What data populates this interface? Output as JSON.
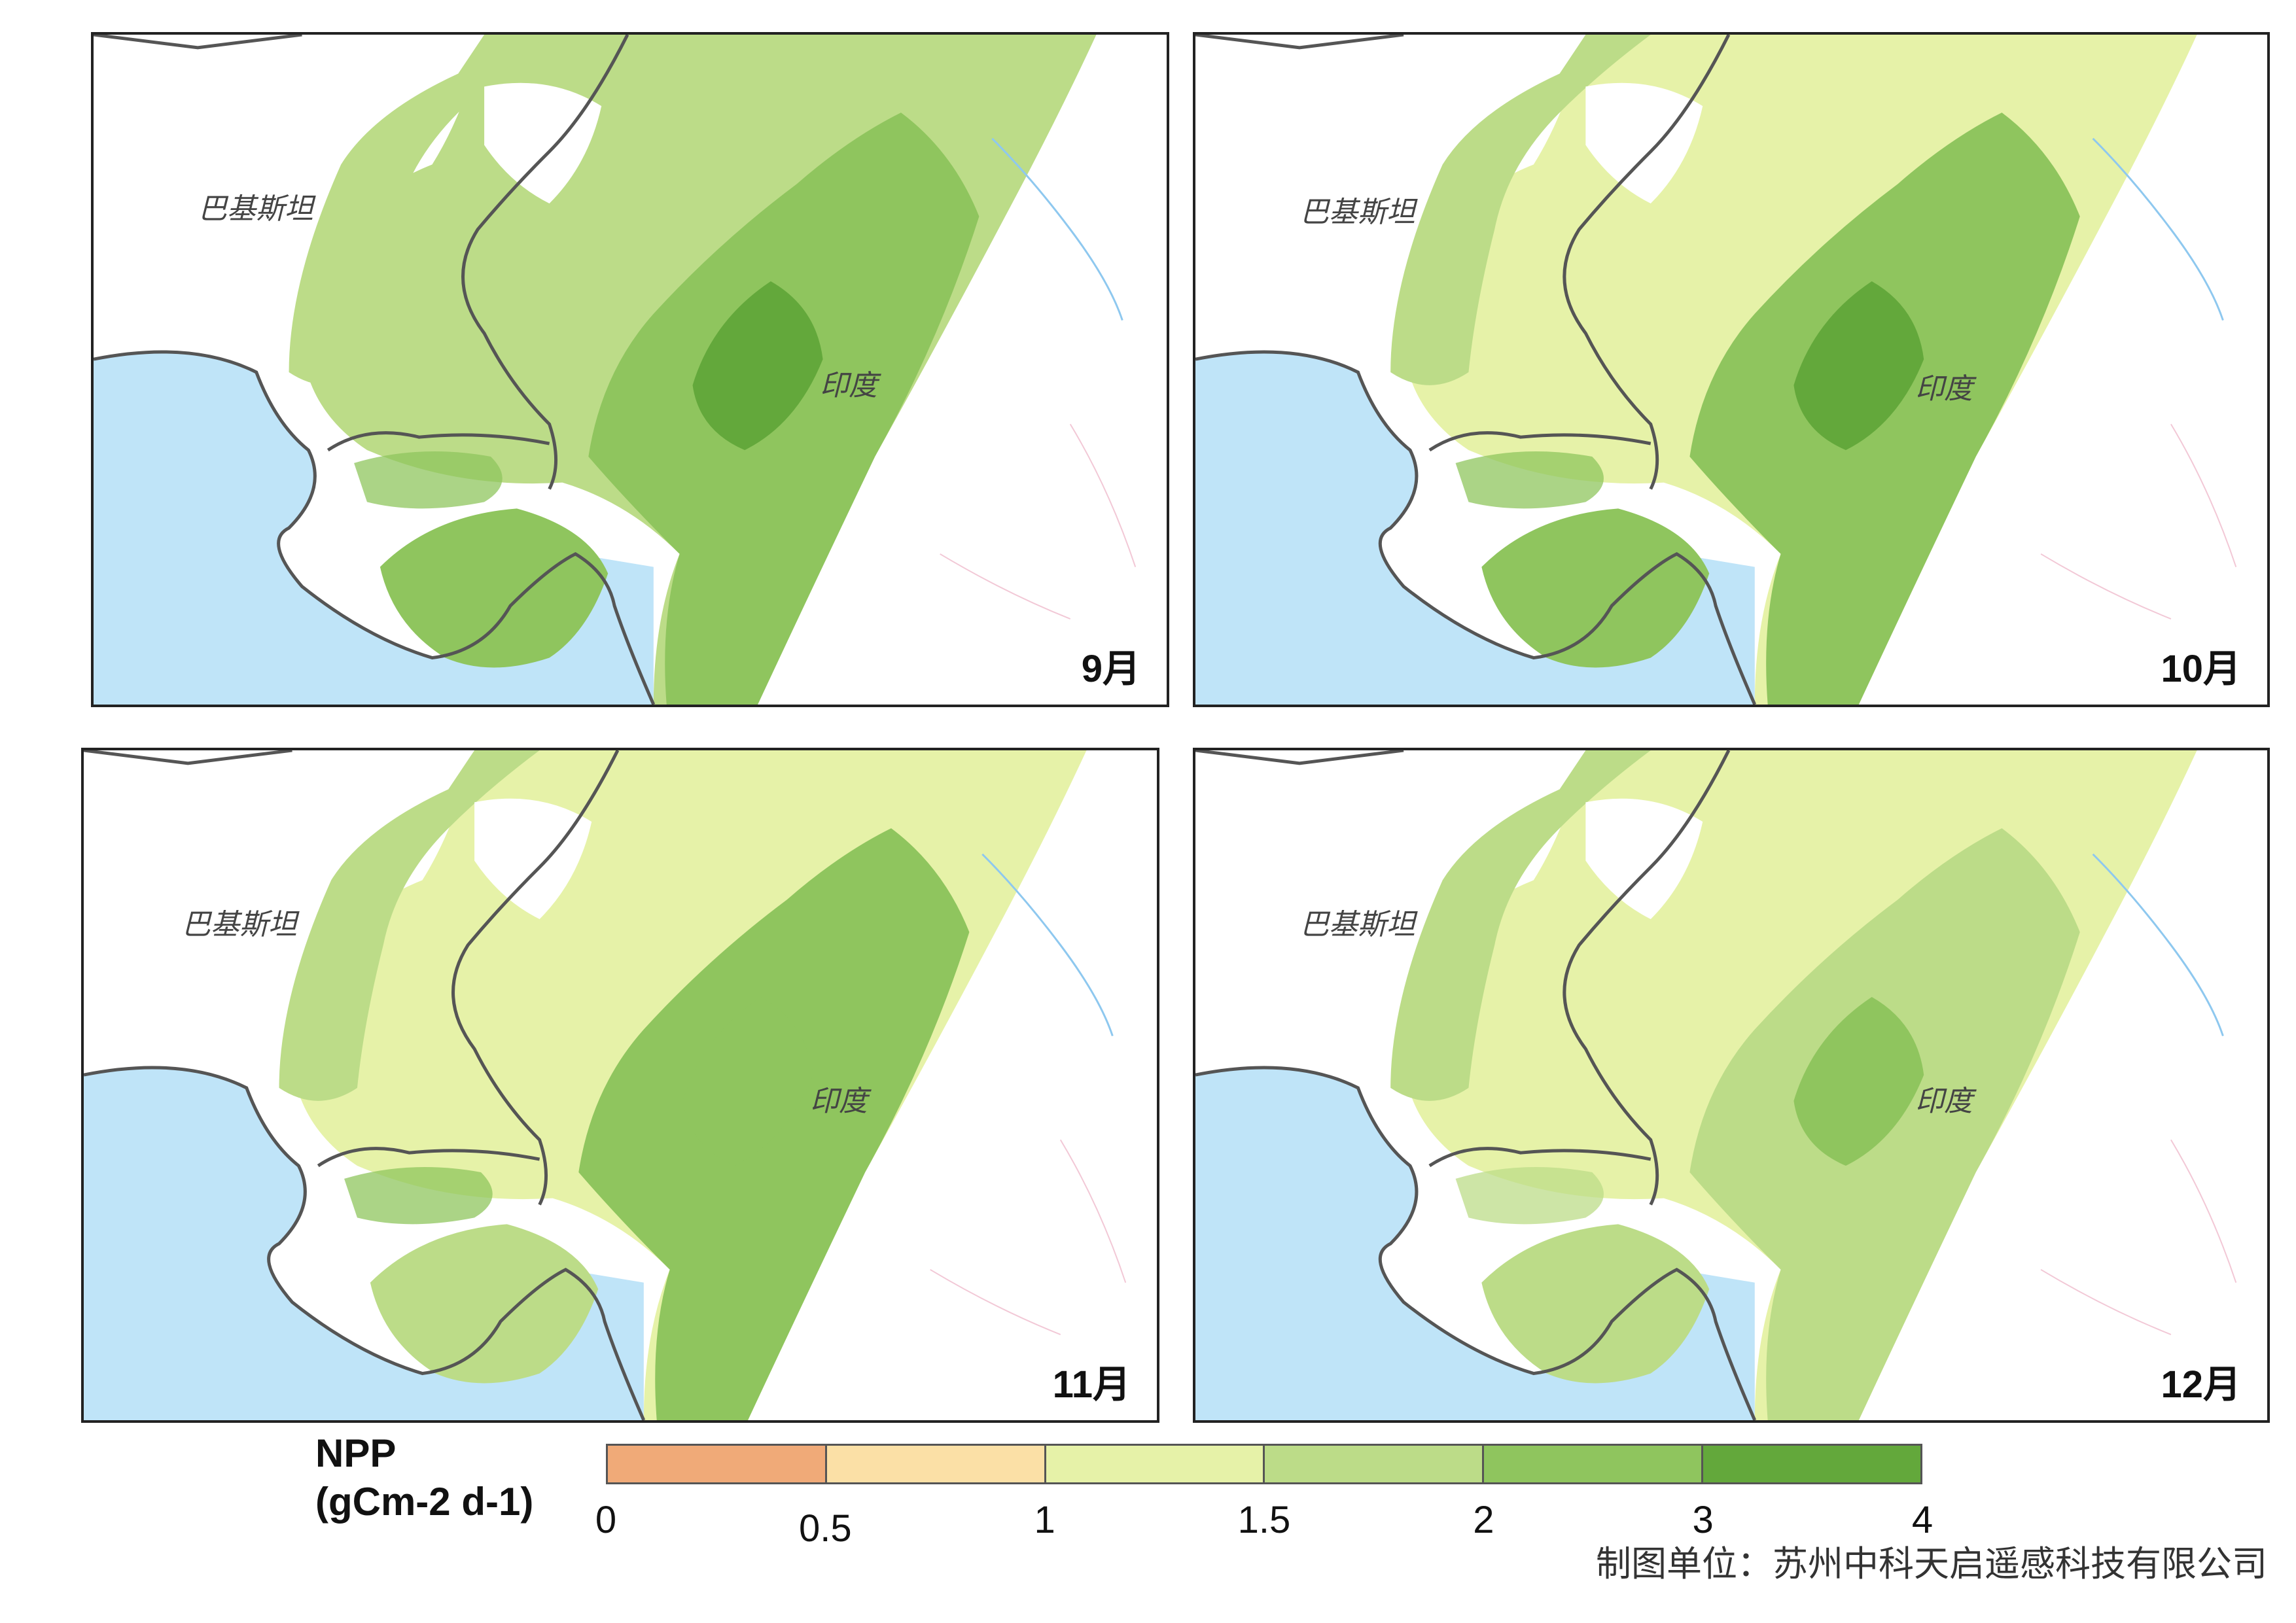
{
  "panels": [
    {
      "month": "9月",
      "labels": {
        "pakistan": "巴基斯坦",
        "india": "印度"
      }
    },
    {
      "month": "10月",
      "labels": {
        "pakistan": "巴基斯坦",
        "india": "印度"
      }
    },
    {
      "month": "11月",
      "labels": {
        "pakistan": "巴基斯坦",
        "india": "印度"
      }
    },
    {
      "month": "12月",
      "labels": {
        "pakistan": "巴基斯坦",
        "india": "印度"
      }
    }
  ],
  "legend": {
    "title_line1": "NPP",
    "title_line2": "(gCm-2 d-1)",
    "ticks": [
      "0",
      "0.5",
      "1",
      "1.5",
      "2",
      "3",
      "4"
    ],
    "classes": [
      {
        "range": "0-0.5",
        "color": "#f0aa78"
      },
      {
        "range": "0.5-1",
        "color": "#fbe0a6"
      },
      {
        "range": "1-1.5",
        "color": "#e6f2a8"
      },
      {
        "range": "1.5-2",
        "color": "#bcdc88"
      },
      {
        "range": "2-3",
        "color": "#8fc55e"
      },
      {
        "range": "3-4",
        "color": "#63a83b"
      }
    ]
  },
  "credit": "制图单位：苏州中科天启遥感科技有限公司",
  "colors": {
    "sea": "#bfe4f8",
    "land_bg": "#ffffff",
    "border": "#555555"
  }
}
